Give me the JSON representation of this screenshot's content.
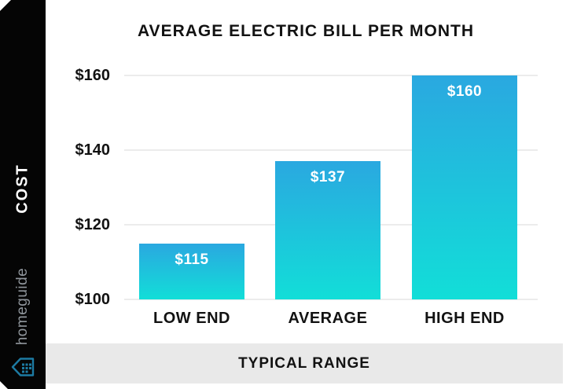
{
  "sidebar": {
    "cost_label": "COST",
    "brand": "homeguide",
    "icon": "homeguide-house-icon",
    "colors": {
      "background": "#050505",
      "cost_text": "#ffffff",
      "brand_text": "#8f959b",
      "icon": "#1d7ba3"
    }
  },
  "chart_data": {
    "type": "bar",
    "title": "AVERAGE ELECTRIC BILL PER MONTH",
    "categories": [
      "LOW END",
      "AVERAGE",
      "HIGH END"
    ],
    "values": [
      115,
      137,
      160
    ],
    "bar_labels": [
      "$115",
      "$137",
      "$160"
    ],
    "y_ticks": [
      "$160",
      "$140",
      "$120",
      "$100"
    ],
    "xlabel": "",
    "ylabel": "COST",
    "ylim": [
      100,
      160
    ],
    "grid": true,
    "legend": false,
    "gridline_color": "#ececec",
    "bar_gradient": {
      "top": "#2AA8E0",
      "bottom": "#12DED8"
    },
    "value_label_color": "#ffffff"
  },
  "footer": {
    "label": "TYPICAL RANGE",
    "background": "#e9e9e9"
  }
}
